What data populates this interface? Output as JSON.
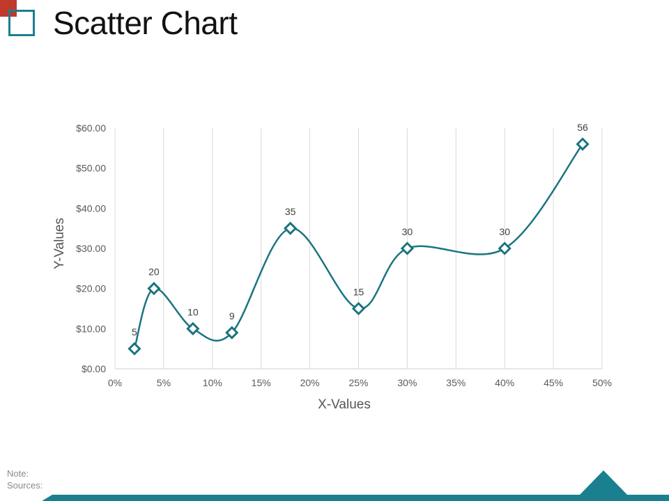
{
  "title": "Scatter Chart",
  "footer": {
    "note": "Note:",
    "sources": "Sources:"
  },
  "colors": {
    "series": "#1a7480",
    "accent_red": "#c0392b",
    "footer_band": "#1a7f8e"
  },
  "chart_data": {
    "type": "scatter",
    "xlabel": "X-Values",
    "ylabel": "Y-Values",
    "xlim": [
      0,
      0.5
    ],
    "ylim": [
      0,
      60
    ],
    "x_ticks": [
      0,
      0.05,
      0.1,
      0.15,
      0.2,
      0.25,
      0.3,
      0.35,
      0.4,
      0.45,
      0.5
    ],
    "x_tick_labels": [
      "0%",
      "5%",
      "10%",
      "15%",
      "20%",
      "25%",
      "30%",
      "35%",
      "40%",
      "45%",
      "50%"
    ],
    "y_ticks": [
      0,
      10,
      20,
      30,
      40,
      50,
      60
    ],
    "y_tick_labels": [
      "$0.00",
      "$10.00",
      "$20.00",
      "$30.00",
      "$40.00",
      "$50.00",
      "$60.00"
    ],
    "grid": "vertical",
    "smooth_line": true,
    "marker": "diamond",
    "points": [
      {
        "x": 0.02,
        "y": 5,
        "label": "5"
      },
      {
        "x": 0.04,
        "y": 20,
        "label": "20"
      },
      {
        "x": 0.08,
        "y": 10,
        "label": "10"
      },
      {
        "x": 0.12,
        "y": 9,
        "label": "9"
      },
      {
        "x": 0.18,
        "y": 35,
        "label": "35"
      },
      {
        "x": 0.25,
        "y": 15,
        "label": "15"
      },
      {
        "x": 0.3,
        "y": 30,
        "label": "30"
      },
      {
        "x": 0.4,
        "y": 30,
        "label": "30"
      },
      {
        "x": 0.48,
        "y": 56,
        "label": "56"
      }
    ]
  }
}
